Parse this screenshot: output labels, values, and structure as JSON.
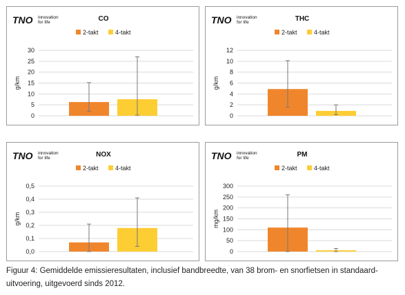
{
  "logo": {
    "brand": "TNO",
    "tagline_line1": "innovation",
    "tagline_line2": "for life"
  },
  "colors": {
    "series_2takt": "#F0862C",
    "series_4takt": "#FDCD34",
    "error_bar": "#777777",
    "grid": "#D9D9D9",
    "axis_text": "#222222"
  },
  "caption": "Figuur 4: Gemiddelde emissieresultaten, inclusief bandbreedte, van 38 brom- en snorfietsen in standaard-uitvoering, uitgevoerd sinds 2012.",
  "chart_data": [
    {
      "type": "bar",
      "title": "CO",
      "ylabel": "g/km",
      "xlabel": "",
      "ylim": [
        0,
        30
      ],
      "ytick_step": 5,
      "yticks": [
        "0",
        "5",
        "10",
        "15",
        "20",
        "25",
        "30"
      ],
      "legend_position": "top",
      "grid": true,
      "series": [
        {
          "name": "2-takt",
          "value": 6.3,
          "error_low": 2.0,
          "error_high": 15.2
        },
        {
          "name": "4-takt",
          "value": 7.6,
          "error_low": 0.3,
          "error_high": 27.0
        }
      ]
    },
    {
      "type": "bar",
      "title": "THC",
      "ylabel": "g/km",
      "xlabel": "",
      "ylim": [
        0,
        12
      ],
      "ytick_step": 2,
      "yticks": [
        "0",
        "2",
        "4",
        "6",
        "8",
        "10",
        "12"
      ],
      "legend_position": "top",
      "grid": true,
      "series": [
        {
          "name": "2-takt",
          "value": 4.9,
          "error_low": 1.6,
          "error_high": 10.1
        },
        {
          "name": "4-takt",
          "value": 0.9,
          "error_low": 0.2,
          "error_high": 2.0
        }
      ]
    },
    {
      "type": "bar",
      "title": "NOX",
      "ylabel": "g/km",
      "xlabel": "",
      "ylim": [
        0,
        0.5
      ],
      "ytick_step": 0.1,
      "yticks": [
        "0,0",
        "0,1",
        "0,2",
        "0,3",
        "0,4",
        "0,5"
      ],
      "legend_position": "top",
      "grid": true,
      "series": [
        {
          "name": "2-takt",
          "value": 0.07,
          "error_low": 0.0,
          "error_high": 0.21
        },
        {
          "name": "4-takt",
          "value": 0.18,
          "error_low": 0.04,
          "error_high": 0.41
        }
      ]
    },
    {
      "type": "bar",
      "title": "PM",
      "ylabel": "mg/km",
      "xlabel": "",
      "ylim": [
        0,
        300
      ],
      "ytick_step": 50,
      "yticks": [
        "0",
        "50",
        "100",
        "150",
        "200",
        "250",
        "300"
      ],
      "legend_position": "top",
      "grid": true,
      "series": [
        {
          "name": "2-takt",
          "value": 110,
          "error_low": 0,
          "error_high": 260
        },
        {
          "name": "4-takt",
          "value": 6,
          "error_low": 0,
          "error_high": 14
        }
      ]
    }
  ]
}
